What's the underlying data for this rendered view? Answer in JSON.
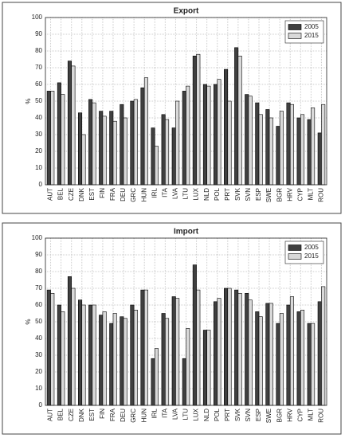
{
  "chart_data": [
    {
      "type": "bar",
      "title": "Export",
      "ylabel": "%",
      "categories": [
        "AUT",
        "BEL",
        "CZE",
        "DNK",
        "EST",
        "FIN",
        "FRA",
        "DEU",
        "GRC",
        "HUN",
        "IRL",
        "ITA",
        "LVA",
        "LTU",
        "LUX",
        "NLD",
        "POL",
        "PRT",
        "SVK",
        "SVN",
        "ESP",
        "SWE",
        "BGR",
        "HRV",
        "CYP",
        "MLT",
        "ROU"
      ],
      "series": [
        {
          "name": "2005",
          "color": "#404040",
          "values": [
            56,
            61,
            74,
            43,
            51,
            44,
            44,
            48,
            50,
            58,
            34,
            42,
            34,
            56,
            77,
            60,
            60,
            69,
            82,
            54,
            49,
            45,
            35,
            49,
            40,
            39,
            31
          ]
        },
        {
          "name": "2015",
          "color": "#d9d9d9",
          "values": [
            56,
            54,
            71,
            30,
            49,
            41,
            38,
            40,
            51,
            64,
            23,
            39,
            50,
            59,
            78,
            59,
            63,
            50,
            77,
            53,
            42,
            40,
            44,
            48,
            42,
            46,
            48
          ]
        }
      ],
      "ylim": [
        0,
        100
      ],
      "yticks": [
        0,
        10,
        20,
        30,
        40,
        50,
        60,
        70,
        80,
        90,
        100
      ],
      "grid": true,
      "legend": "upper-right"
    },
    {
      "type": "bar",
      "title": "Import",
      "ylabel": "%",
      "categories": [
        "AUT",
        "BEL",
        "CZE",
        "DNK",
        "EST",
        "FIN",
        "FRA",
        "DEU",
        "GRC",
        "HUN",
        "IRL",
        "ITA",
        "LVA",
        "LTU",
        "LUX",
        "NLD",
        "POL",
        "PRT",
        "SVK",
        "SVN",
        "ESP",
        "SWE",
        "BGR",
        "HRV",
        "CYP",
        "MLT",
        "ROU"
      ],
      "series": [
        {
          "name": "2005",
          "color": "#404040",
          "values": [
            69,
            60,
            77,
            63,
            60,
            54,
            49,
            53,
            60,
            69,
            28,
            55,
            65,
            28,
            84,
            45,
            62,
            70,
            69,
            67,
            56,
            61,
            49,
            60,
            56,
            49,
            62
          ]
        },
        {
          "name": "2015",
          "color": "#d9d9d9",
          "values": [
            67,
            56,
            70,
            60,
            60,
            56,
            55,
            52,
            57,
            69,
            34,
            52,
            64,
            46,
            69,
            45,
            64,
            70,
            67,
            63,
            53,
            61,
            55,
            65,
            57,
            49,
            71
          ]
        }
      ],
      "ylim": [
        0,
        100
      ],
      "yticks": [
        0,
        10,
        20,
        30,
        40,
        50,
        60,
        70,
        80,
        90,
        100
      ],
      "grid": true,
      "legend": "upper-right"
    }
  ]
}
